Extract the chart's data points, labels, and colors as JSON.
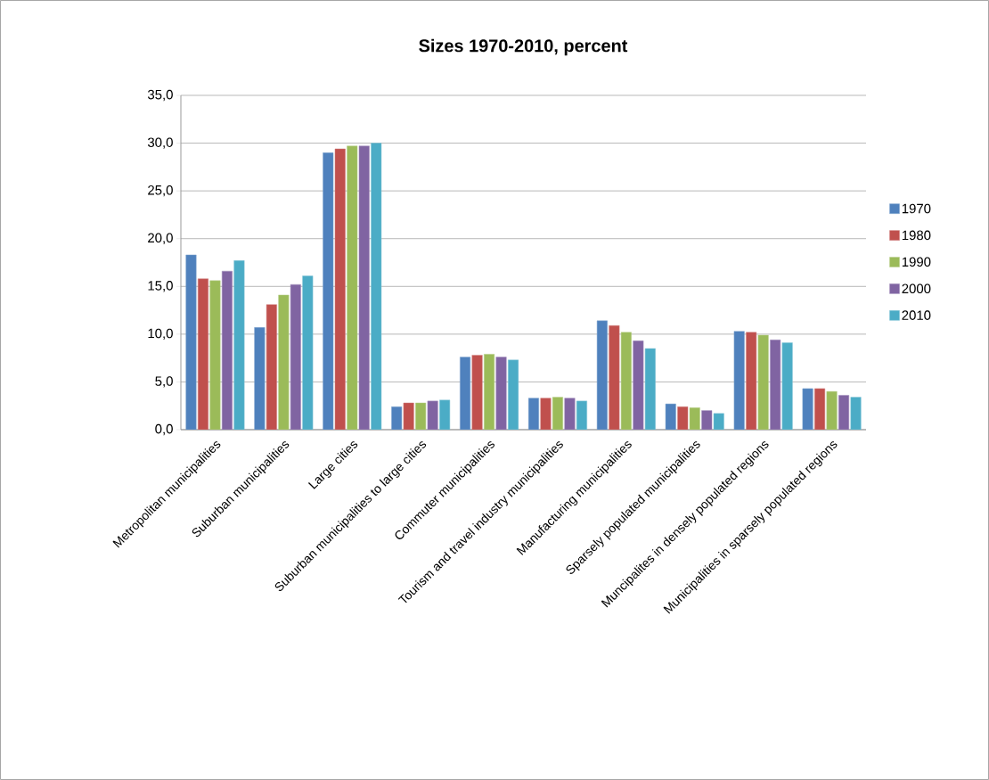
{
  "chart_data": {
    "type": "bar",
    "title": "Sizes 1970-2010, percent",
    "categories": [
      "Metropolitan municipalities",
      "Suburban municipalities",
      "Large cities",
      "Suburban municipalities to large cities",
      "Commuter municipalities",
      "Tourism and travel industry municipalities",
      "Manufacturing municipalities",
      "Sparsely populated municipalities",
      "Muncipalites in densely populated regions",
      "Municipalities in sparsely populated regions"
    ],
    "series": [
      {
        "name": "1970",
        "color": "#4f81bd",
        "values": [
          18.3,
          10.7,
          29.0,
          2.4,
          7.6,
          3.3,
          11.4,
          2.7,
          10.3,
          4.3
        ]
      },
      {
        "name": "1980",
        "color": "#c0504d",
        "values": [
          15.8,
          13.1,
          29.4,
          2.8,
          7.8,
          3.3,
          10.9,
          2.4,
          10.2,
          4.3
        ]
      },
      {
        "name": "1990",
        "color": "#9bbb59",
        "values": [
          15.6,
          14.1,
          29.7,
          2.8,
          7.9,
          3.4,
          10.2,
          2.3,
          9.9,
          4.0
        ]
      },
      {
        "name": "2000",
        "color": "#8064a2",
        "values": [
          16.6,
          15.2,
          29.7,
          3.0,
          7.6,
          3.3,
          9.3,
          2.0,
          9.4,
          3.6
        ]
      },
      {
        "name": "2010",
        "color": "#4bacc6",
        "values": [
          17.7,
          16.1,
          30.0,
          3.1,
          7.3,
          3.0,
          8.5,
          1.7,
          9.1,
          3.4
        ]
      }
    ],
    "ylim": [
      0,
      35
    ],
    "yticks": [
      {
        "value": 0,
        "label": "0,0"
      },
      {
        "value": 5,
        "label": "5,0"
      },
      {
        "value": 10,
        "label": "10,0"
      },
      {
        "value": 15,
        "label": "15,0"
      },
      {
        "value": 20,
        "label": "20,0"
      },
      {
        "value": 25,
        "label": "25,0"
      },
      {
        "value": 30,
        "label": "30,0"
      },
      {
        "value": 35,
        "label": "35,0"
      }
    ],
    "grid": "y",
    "legend": "right"
  }
}
